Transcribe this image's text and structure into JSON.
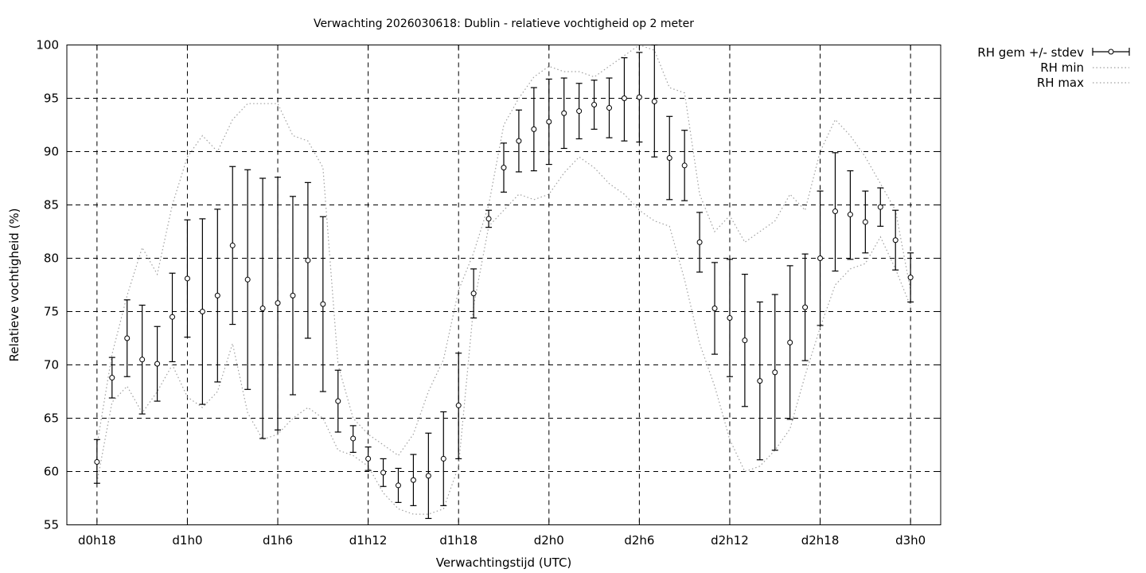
{
  "chart_data": {
    "type": "scatter",
    "title": "Verwachting 2026030618: Dublin - relatieve vochtigheid op 2 meter",
    "xlabel": "Verwachtingstijd (UTC)",
    "ylabel": "Relatieve vochtigheid (%)",
    "ylim": [
      55,
      100
    ],
    "xlim": [
      -2,
      56
    ],
    "grid": true,
    "legend_position": "outside-top-right",
    "y_ticks": [
      "55",
      "60",
      "65",
      "70",
      "75",
      "80",
      "85",
      "90",
      "95",
      "100"
    ],
    "x_ticks": [
      {
        "x": 0,
        "label": "d0h18"
      },
      {
        "x": 6,
        "label": "d1h0"
      },
      {
        "x": 12,
        "label": "d1h6"
      },
      {
        "x": 18,
        "label": "d1h12"
      },
      {
        "x": 24,
        "label": "d1h18"
      },
      {
        "x": 30,
        "label": "d2h0"
      },
      {
        "x": 36,
        "label": "d2h6"
      },
      {
        "x": 42,
        "label": "d2h12"
      },
      {
        "x": 48,
        "label": "d2h18"
      },
      {
        "x": 54,
        "label": "d3h0"
      }
    ],
    "series": [
      {
        "name": "RH gem +/- stdev",
        "style": "errorbars",
        "x": [
          0,
          1,
          2,
          3,
          4,
          5,
          6,
          7,
          8,
          9,
          10,
          11,
          12,
          13,
          14,
          15,
          16,
          17,
          18,
          19,
          20,
          21,
          22,
          23,
          24,
          25,
          26,
          27,
          28,
          29,
          30,
          31,
          32,
          33,
          34,
          35,
          36,
          37,
          38,
          39,
          40,
          41,
          42,
          43,
          44,
          45,
          46,
          47,
          48,
          49,
          50,
          51,
          52,
          53,
          54
        ],
        "mean": [
          60.9,
          68.8,
          72.5,
          70.5,
          70.1,
          74.5,
          78.1,
          75.0,
          76.5,
          81.2,
          78.0,
          75.3,
          75.8,
          76.5,
          79.8,
          75.7,
          66.6,
          63.1,
          61.2,
          59.9,
          58.7,
          59.2,
          59.6,
          61.2,
          66.2,
          76.7,
          83.7,
          88.5,
          91.0,
          92.1,
          92.8,
          93.6,
          93.8,
          94.4,
          94.1,
          95.0,
          95.1,
          94.7,
          89.4,
          88.7,
          81.5,
          75.3,
          74.4,
          72.3,
          68.5,
          69.3,
          72.1,
          75.4,
          80.0,
          84.4,
          84.1,
          83.4,
          84.8,
          81.7,
          78.2
        ],
        "low": [
          58.9,
          66.9,
          68.9,
          65.4,
          66.6,
          70.3,
          72.6,
          66.3,
          68.4,
          73.8,
          67.7,
          63.1,
          63.9,
          67.2,
          72.5,
          67.5,
          63.7,
          61.8,
          60.1,
          58.6,
          57.1,
          56.8,
          55.6,
          56.8,
          61.2,
          74.4,
          82.9,
          86.2,
          88.1,
          88.2,
          88.8,
          90.3,
          91.2,
          92.1,
          91.3,
          91.0,
          90.9,
          89.5,
          85.5,
          85.4,
          78.7,
          71.0,
          68.9,
          66.1,
          61.1,
          62.0,
          64.9,
          70.4,
          73.7,
          78.8,
          79.9,
          80.5,
          83.0,
          78.9,
          75.9
        ],
        "high": [
          63.0,
          70.7,
          76.1,
          75.6,
          73.6,
          78.6,
          83.6,
          83.7,
          84.6,
          88.6,
          88.3,
          87.5,
          87.6,
          85.8,
          87.1,
          83.9,
          69.5,
          64.3,
          62.3,
          61.2,
          60.3,
          61.6,
          63.6,
          65.6,
          71.1,
          79.0,
          84.5,
          90.8,
          93.9,
          96.0,
          96.8,
          96.9,
          96.4,
          96.7,
          96.9,
          98.8,
          99.3,
          100.0,
          93.3,
          92.0,
          84.3,
          79.6,
          79.9,
          78.5,
          75.9,
          76.6,
          79.3,
          80.4,
          86.3,
          89.9,
          88.2,
          86.3,
          86.6,
          84.5,
          80.5
        ]
      },
      {
        "name": "RH min",
        "style": "dotted",
        "x": [
          0,
          1,
          2,
          3,
          4,
          5,
          6,
          7,
          8,
          9,
          10,
          11,
          12,
          13,
          14,
          15,
          16,
          17,
          18,
          19,
          20,
          21,
          22,
          23,
          24,
          25,
          26,
          27,
          28,
          29,
          30,
          31,
          32,
          33,
          34,
          35,
          36,
          37,
          38,
          39,
          40,
          41,
          42,
          43,
          44,
          45,
          46,
          47,
          48,
          49,
          50,
          51,
          52,
          53,
          54
        ],
        "values": [
          59.0,
          66.5,
          68.0,
          65.5,
          67.5,
          70.0,
          67.0,
          66.0,
          67.5,
          72.0,
          65.5,
          63.0,
          63.5,
          65.0,
          66.0,
          65.0,
          62.0,
          61.5,
          60.5,
          58.0,
          56.5,
          56.0,
          56.0,
          56.5,
          60.5,
          75.5,
          83.0,
          84.5,
          86.0,
          85.5,
          86.0,
          88.0,
          89.5,
          88.5,
          87.0,
          86.0,
          84.5,
          83.5,
          83.0,
          78.0,
          72.0,
          68.0,
          63.0,
          60.0,
          60.5,
          62.0,
          64.0,
          69.0,
          73.5,
          77.5,
          79.0,
          79.5,
          82.0,
          79.0,
          75.5
        ]
      },
      {
        "name": "RH max",
        "style": "dotted",
        "x": [
          0,
          1,
          2,
          3,
          4,
          5,
          6,
          7,
          8,
          9,
          10,
          11,
          12,
          13,
          14,
          15,
          16,
          17,
          18,
          19,
          20,
          21,
          22,
          23,
          24,
          25,
          26,
          27,
          28,
          29,
          30,
          31,
          32,
          33,
          34,
          35,
          36,
          37,
          38,
          39,
          40,
          41,
          42,
          43,
          44,
          45,
          46,
          47,
          48,
          49,
          50,
          51,
          52,
          53,
          54
        ],
        "values": [
          62.5,
          71.0,
          76.5,
          81.0,
          78.5,
          85.0,
          89.5,
          91.5,
          90.0,
          93.0,
          94.5,
          94.5,
          94.5,
          91.5,
          91.0,
          88.5,
          70.0,
          65.0,
          63.5,
          62.5,
          61.5,
          63.5,
          67.5,
          70.5,
          77.0,
          80.5,
          85.0,
          92.5,
          95.0,
          97.0,
          98.0,
          97.5,
          97.5,
          97.0,
          98.0,
          99.0,
          100.0,
          99.5,
          96.0,
          95.5,
          86.0,
          82.5,
          84.0,
          81.5,
          82.5,
          83.5,
          86.0,
          84.5,
          90.0,
          93.0,
          91.5,
          89.5,
          87.0,
          84.5,
          77.0
        ]
      }
    ]
  }
}
